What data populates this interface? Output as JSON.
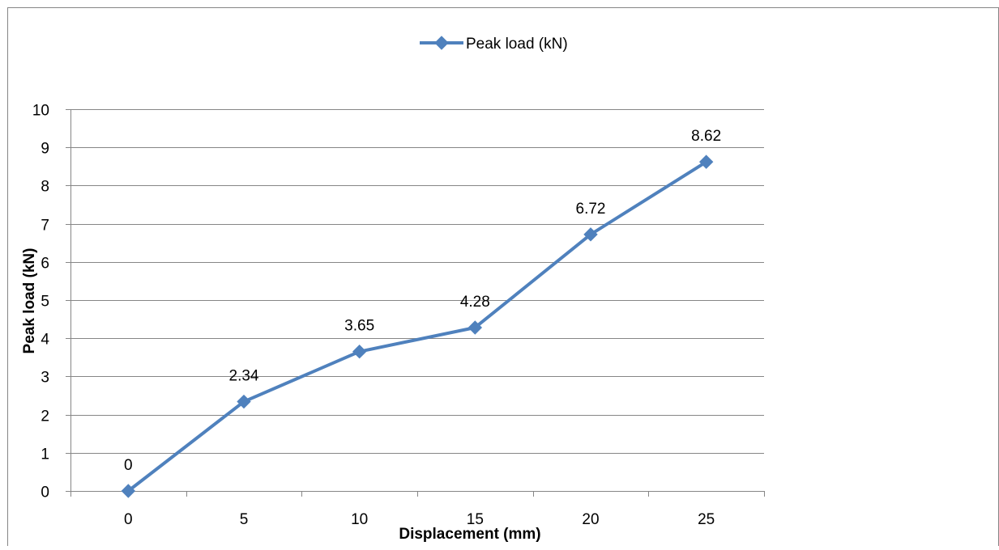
{
  "chart_data": {
    "type": "line",
    "title": "",
    "xlabel": "Displacement (mm)",
    "ylabel": "Peak load (kN)",
    "categories": [
      "0",
      "5",
      "10",
      "15",
      "20",
      "25"
    ],
    "series": [
      {
        "name": "Peak load (kN)",
        "values": [
          0,
          2.34,
          3.65,
          4.28,
          6.72,
          8.62
        ],
        "data_labels": [
          "0",
          "2.34",
          "3.65",
          "4.28",
          "6.72",
          "8.62"
        ],
        "color": "#4F81BD",
        "marker": "diamond"
      }
    ],
    "ylim": [
      0,
      10
    ],
    "y_ticks": [
      "0",
      "1",
      "2",
      "3",
      "4",
      "5",
      "6",
      "7",
      "8",
      "9",
      "10"
    ],
    "grid": true,
    "legend_position": "top"
  }
}
